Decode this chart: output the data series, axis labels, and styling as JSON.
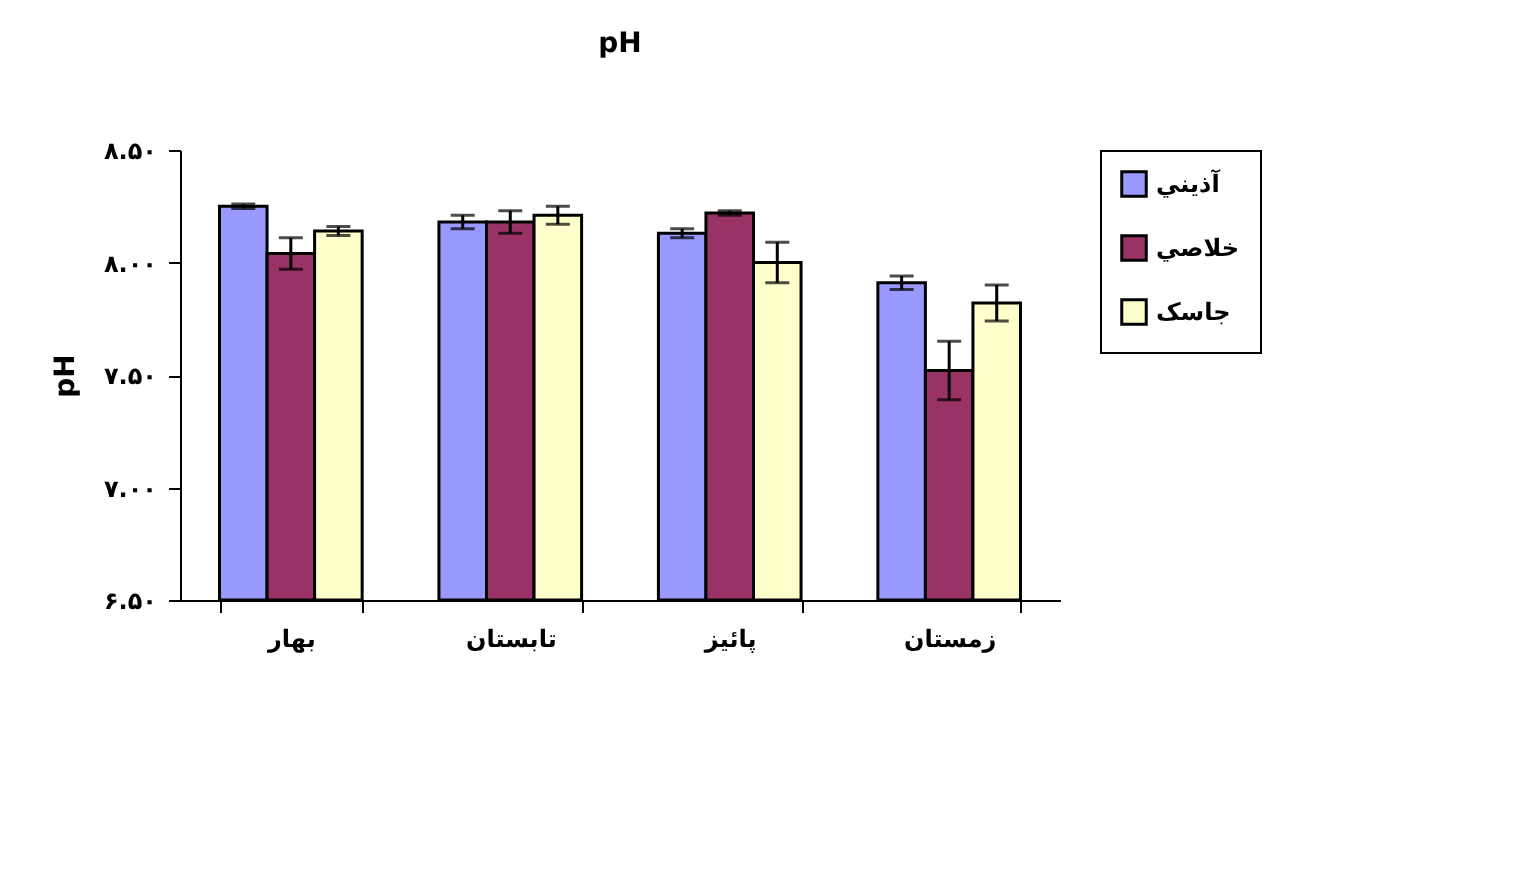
{
  "chart_data": {
    "type": "bar",
    "title": "pH",
    "ylabel": "pH",
    "categories": [
      "بهار",
      "تابستان",
      "پائیز",
      "زمستان"
    ],
    "series": [
      {
        "name": "آذيني",
        "color": "#9999ff",
        "values": [
          8.25,
          8.18,
          8.13,
          7.91
        ],
        "errors": [
          0.01,
          0.03,
          0.02,
          0.03
        ]
      },
      {
        "name": "خلاصي",
        "color": "#993366",
        "values": [
          8.04,
          8.18,
          8.22,
          7.52
        ],
        "errors": [
          0.07,
          0.05,
          0.01,
          0.13
        ]
      },
      {
        "name": "جاسک",
        "color": "#ffffcc",
        "values": [
          8.14,
          8.21,
          8.0,
          7.82
        ],
        "errors": [
          0.02,
          0.04,
          0.09,
          0.08
        ]
      }
    ],
    "ylim": [
      6.5,
      8.5
    ],
    "yticks": [
      {
        "value": 6.5,
        "label": "۶.۵۰"
      },
      {
        "value": 7.0,
        "label": "۷.۰۰"
      },
      {
        "value": 7.5,
        "label": "۷.۵۰"
      },
      {
        "value": 8.0,
        "label": "۸.۰۰"
      },
      {
        "value": 8.5,
        "label": "۸.۵۰"
      }
    ],
    "grid": false,
    "legend": "right"
  }
}
